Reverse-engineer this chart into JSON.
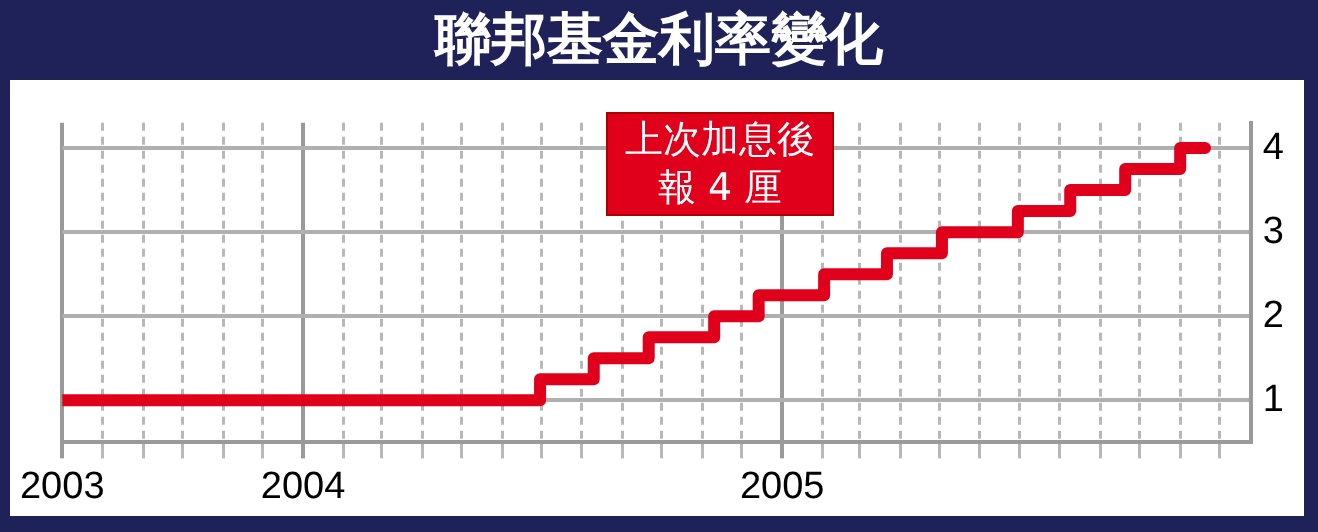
{
  "chart_data": {
    "type": "step",
    "title": "聯邦基金利率變化",
    "x": [
      "2003-07-01",
      "2004-06-30",
      "2004-08-10",
      "2004-09-21",
      "2004-11-10",
      "2004-12-14",
      "2005-02-02",
      "2005-03-22",
      "2005-05-03",
      "2005-06-30",
      "2005-08-09",
      "2005-09-20",
      "2005-11-01",
      "2005-11-20"
    ],
    "series": [
      {
        "color": "#e0001b",
        "values": [
          1,
          1.25,
          1.5,
          1.75,
          2,
          2.25,
          2.5,
          2.75,
          3,
          3.25,
          3.5,
          3.75,
          4,
          4
        ]
      }
    ],
    "xlim": [
      "2003-07-01",
      "2005-12-25"
    ],
    "xticks": [
      {
        "value": "2003-07-01",
        "label": "2003"
      },
      {
        "value": "2003-08-01",
        "label": null
      },
      {
        "value": "2003-09-01",
        "label": null
      },
      {
        "value": "2003-10-01",
        "label": null
      },
      {
        "value": "2003-11-01",
        "label": null
      },
      {
        "value": "2003-12-01",
        "label": null
      },
      {
        "value": "2004-01-01",
        "label": "2004"
      },
      {
        "value": "2004-02-01",
        "label": null
      },
      {
        "value": "2004-03-01",
        "label": null
      },
      {
        "value": "2004-04-01",
        "label": null
      },
      {
        "value": "2004-05-01",
        "label": null
      },
      {
        "value": "2004-06-01",
        "label": null
      },
      {
        "value": "2004-07-01",
        "label": null
      },
      {
        "value": "2004-08-01",
        "label": null
      },
      {
        "value": "2004-09-01",
        "label": null
      },
      {
        "value": "2004-10-01",
        "label": null
      },
      {
        "value": "2004-11-01",
        "label": null
      },
      {
        "value": "2004-12-01",
        "label": null
      },
      {
        "value": "2005-01-01",
        "label": "2005"
      },
      {
        "value": "2005-02-01",
        "label": null
      },
      {
        "value": "2005-03-01",
        "label": null
      },
      {
        "value": "2005-04-01",
        "label": null
      },
      {
        "value": "2005-05-01",
        "label": null
      },
      {
        "value": "2005-06-01",
        "label": null
      },
      {
        "value": "2005-07-01",
        "label": null
      },
      {
        "value": "2005-08-01",
        "label": null
      },
      {
        "value": "2005-09-01",
        "label": null
      },
      {
        "value": "2005-10-01",
        "label": null
      },
      {
        "value": "2005-11-01",
        "label": null
      },
      {
        "value": "2005-12-01",
        "label": null
      }
    ],
    "ylim": [
      0.5,
      4.3
    ],
    "yticks": [
      1,
      2,
      3,
      4
    ],
    "grid": true,
    "annotations": [
      "上次加息後報 4 厘"
    ]
  }
}
